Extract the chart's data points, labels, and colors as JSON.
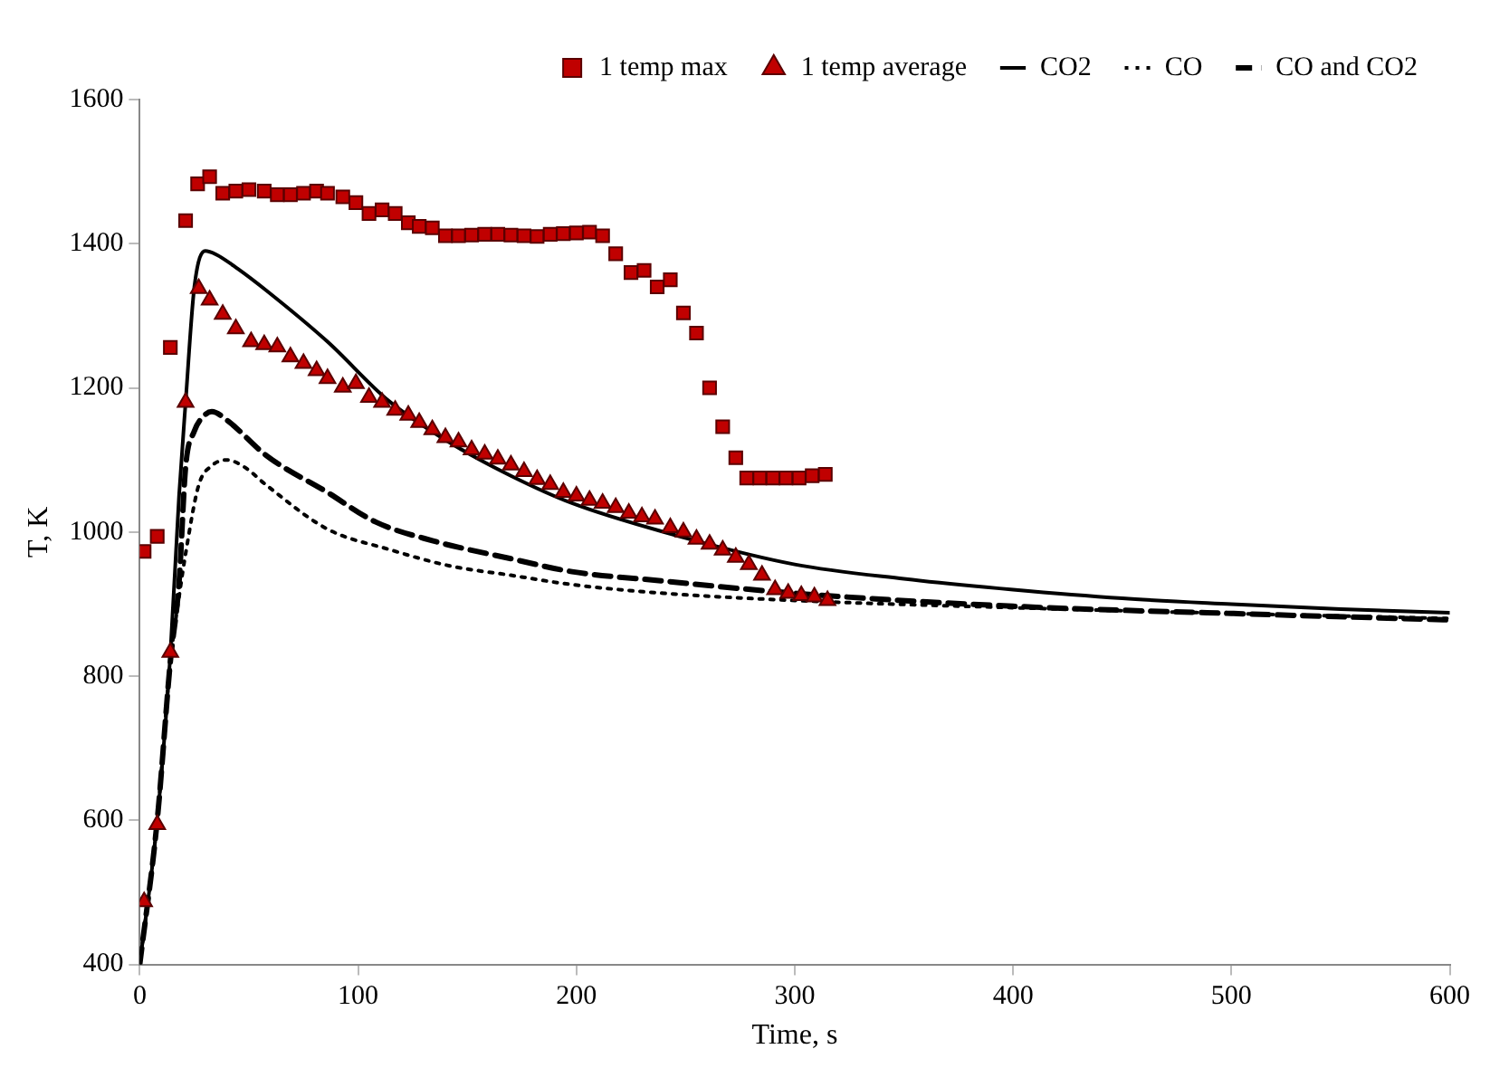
{
  "chart_data": {
    "type": "scatter",
    "xlabel": "Time, s",
    "ylabel": "T, K",
    "xlim": [
      0,
      600
    ],
    "xticks": [
      0,
      100,
      200,
      300,
      400,
      500,
      600
    ],
    "ylim": [
      400,
      1600
    ],
    "yticks": [
      400,
      600,
      800,
      1000,
      1200,
      1400,
      1600
    ],
    "grid": false,
    "legend": "top",
    "series": [
      {
        "name": "1 temp max",
        "type": "scatter",
        "marker": "square",
        "color": "#c00000",
        "x": [
          2,
          8,
          14,
          21,
          26.5,
          32,
          38,
          44,
          50,
          57,
          63,
          69,
          75,
          81,
          86,
          93,
          99,
          105,
          111,
          117,
          123,
          128,
          134,
          140,
          146,
          152,
          158,
          164,
          170,
          176,
          182,
          188,
          194,
          200,
          206,
          212,
          218,
          225,
          231,
          237,
          243,
          249,
          255,
          261,
          267,
          273,
          278,
          284,
          290,
          296,
          302,
          308,
          314
        ],
        "values": [
          973,
          994,
          1256,
          1432,
          1483,
          1493,
          1470,
          1473,
          1475,
          1473,
          1468,
          1468,
          1470,
          1473,
          1470,
          1465,
          1457,
          1442,
          1447,
          1442,
          1429,
          1424,
          1422,
          1411,
          1411,
          1412,
          1413,
          1413,
          1412,
          1411,
          1410,
          1413,
          1414,
          1415,
          1416,
          1411,
          1386,
          1360,
          1363,
          1340,
          1350,
          1304,
          1276,
          1200,
          1146,
          1103,
          1075,
          1075,
          1075,
          1075,
          1075,
          1078,
          1080
        ]
      },
      {
        "name": "1 temp average",
        "type": "scatter",
        "marker": "triangle",
        "color": "#c00000",
        "x": [
          2,
          8,
          14,
          21,
          27,
          32,
          38,
          44,
          51,
          57,
          63,
          69,
          75,
          81,
          86,
          93,
          99,
          105,
          111,
          117,
          123,
          128,
          134,
          140,
          146,
          152,
          158,
          164,
          170,
          176,
          182,
          188,
          194,
          200,
          206,
          212,
          218,
          224,
          230,
          236,
          243,
          249,
          255,
          261,
          267,
          273,
          279,
          285,
          291,
          297,
          303,
          309,
          315
        ],
        "values": [
          487,
          594,
          833,
          1180,
          1338,
          1322,
          1302,
          1282,
          1264,
          1260,
          1257,
          1243,
          1234,
          1224,
          1213,
          1201,
          1206,
          1187,
          1180,
          1169,
          1162,
          1152,
          1142,
          1131,
          1125,
          1114,
          1108,
          1101,
          1093,
          1084,
          1073,
          1066,
          1055,
          1050,
          1044,
          1040,
          1034,
          1026,
          1021,
          1018,
          1006,
          1000,
          990,
          983,
          975,
          965,
          955,
          940,
          920,
          915,
          912,
          910,
          905
        ]
      },
      {
        "name": "CO2",
        "type": "line",
        "line_style": "solid",
        "color": "#000000",
        "x": [
          0,
          8,
          14,
          18,
          21,
          25,
          30,
          35,
          45,
          58,
          86,
          114,
          142,
          170,
          198,
          240,
          300,
          350,
          400,
          450,
          500,
          550,
          600
        ],
        "values": [
          400,
          600,
          830,
          1050,
          1180,
          1340,
          1390,
          1385,
          1365,
          1335,
          1264,
          1182,
          1124,
          1078,
          1040,
          1000,
          955,
          935,
          920,
          908,
          900,
          893,
          888
        ]
      },
      {
        "name": "CO",
        "type": "line",
        "line_style": "dotted",
        "color": "#000000",
        "x": [
          0,
          8,
          14,
          18,
          21,
          27,
          33,
          40,
          48,
          58,
          86,
          114,
          142,
          170,
          198,
          240,
          300,
          400,
          500,
          600
        ],
        "values": [
          400,
          600,
          820,
          910,
          970,
          1065,
          1092,
          1100,
          1090,
          1065,
          1004,
          976,
          953,
          940,
          927,
          915,
          905,
          895,
          887,
          880
        ]
      },
      {
        "name": "CO and CO2",
        "type": "line",
        "line_style": "dashed",
        "color": "#000000",
        "x": [
          0,
          8,
          14,
          18,
          21,
          25,
          29,
          33,
          40,
          58,
          86,
          108,
          134,
          170,
          198,
          240,
          300,
          400,
          500,
          600
        ],
        "values": [
          400,
          600,
          820,
          930,
          1090,
          1140,
          1160,
          1167,
          1155,
          1106,
          1055,
          1014,
          988,
          963,
          945,
          932,
          915,
          897,
          887,
          878
        ]
      }
    ]
  }
}
